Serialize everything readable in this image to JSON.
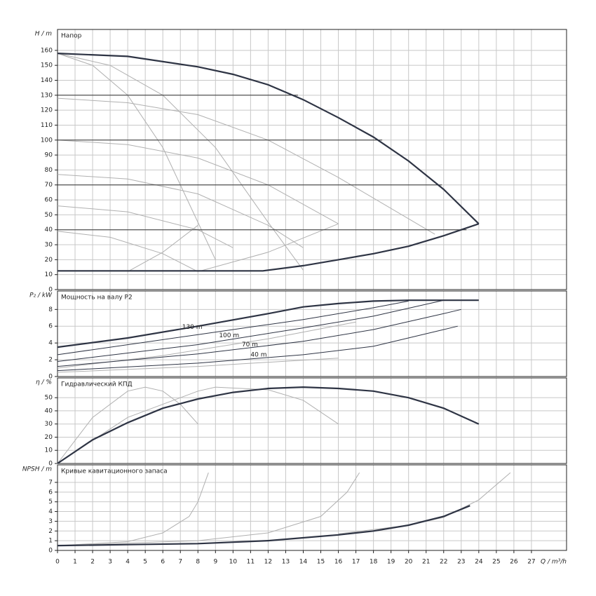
{
  "chart_data": [
    {
      "type": "line",
      "title": "Напор",
      "ylabel": "H / m",
      "xlim": [
        0,
        29
      ],
      "ylim": [
        0,
        174
      ],
      "yticks": [
        0,
        10,
        20,
        30,
        40,
        50,
        60,
        70,
        80,
        90,
        100,
        110,
        120,
        130,
        140,
        150,
        160
      ],
      "grid": true,
      "series": [
        {
          "color": "#b0b0b0",
          "weight": "normal",
          "x": [
            0,
            4,
            8,
            12,
            16,
            21.5
          ],
          "values": [
            128,
            125,
            117,
            100,
            75,
            37
          ]
        },
        {
          "color": "#b0b0b0",
          "weight": "normal",
          "x": [
            0,
            4,
            8,
            12,
            16
          ],
          "values": [
            100,
            97,
            88,
            70,
            44
          ]
        },
        {
          "color": "#b0b0b0",
          "weight": "normal",
          "x": [
            0,
            4,
            8,
            12,
            14
          ],
          "values": [
            77,
            74,
            64,
            43,
            28
          ]
        },
        {
          "color": "#b0b0b0",
          "weight": "normal",
          "x": [
            0,
            4,
            8,
            10
          ],
          "values": [
            56,
            52,
            40,
            28
          ]
        },
        {
          "color": "#b0b0b0",
          "weight": "normal",
          "x": [
            0,
            3,
            6,
            8
          ],
          "values": [
            39,
            35,
            24,
            12
          ]
        },
        {
          "color": "#b0b0b0",
          "weight": "normal",
          "x": [
            0,
            2,
            4,
            6,
            8,
            9
          ],
          "values": [
            158,
            150,
            130,
            95,
            45,
            20
          ]
        },
        {
          "color": "#b0b0b0",
          "weight": "normal",
          "x": [
            0,
            3,
            6,
            9,
            12,
            14
          ],
          "values": [
            158,
            150,
            130,
            95,
            45,
            13
          ]
        },
        {
          "color": "#b0b0b0",
          "weight": "normal",
          "x": [
            4,
            6,
            8
          ],
          "values": [
            12,
            25,
            43
          ]
        },
        {
          "color": "#b0b0b0",
          "weight": "normal",
          "x": [
            8,
            12,
            16
          ],
          "values": [
            12,
            25,
            44
          ]
        },
        {
          "color": "#333333",
          "weight": "normal",
          "x": [
            0,
            13.7
          ],
          "values": [
            130,
            130
          ]
        },
        {
          "color": "#333333",
          "weight": "normal",
          "x": [
            0,
            18.5
          ],
          "values": [
            100,
            100
          ]
        },
        {
          "color": "#333333",
          "weight": "normal",
          "x": [
            0,
            21.9
          ],
          "values": [
            70,
            70
          ]
        },
        {
          "color": "#333333",
          "weight": "normal",
          "x": [
            0,
            23.3
          ],
          "values": [
            40,
            40
          ]
        },
        {
          "color": "#2e3444",
          "weight": "bold",
          "x": [
            0,
            4,
            8,
            10,
            12,
            14,
            16,
            18,
            20,
            22,
            24
          ],
          "values": [
            158,
            156,
            149,
            144,
            137,
            127,
            115,
            102,
            86,
            67,
            44
          ]
        },
        {
          "color": "#2e3444",
          "weight": "bold",
          "x": [
            0,
            11.7,
            14,
            16,
            18,
            20,
            22,
            24
          ],
          "values": [
            12.5,
            12.5,
            16,
            20,
            24,
            29,
            36,
            44
          ]
        }
      ]
    },
    {
      "type": "line",
      "title": "Мощность на валу P2",
      "ylabel": "P₂ / kW",
      "xlim": [
        0,
        29
      ],
      "ylim": [
        0,
        10.2
      ],
      "yticks": [
        0,
        2,
        4,
        6,
        8
      ],
      "grid": true,
      "annotations": [
        "130 m",
        "100 m",
        "70 m",
        "40 m"
      ],
      "series": [
        {
          "color": "#b0b0b0",
          "weight": "normal",
          "x": [
            0,
            8,
            16
          ],
          "values": [
            0.5,
            1.2,
            2.2
          ]
        },
        {
          "color": "#b0b0b0",
          "weight": "normal",
          "x": [
            0,
            6,
            12,
            17
          ],
          "values": [
            1,
            2.5,
            4.5,
            6.5
          ]
        },
        {
          "color": "#2e3444",
          "weight": "normal",
          "x": [
            0,
            8,
            14,
            18,
            20
          ],
          "values": [
            2.6,
            5,
            6.8,
            8.2,
            9.0
          ]
        },
        {
          "color": "#2e3444",
          "weight": "normal",
          "x": [
            0,
            8,
            14,
            18,
            22
          ],
          "values": [
            1.8,
            3.8,
            5.8,
            7.2,
            9.1
          ]
        },
        {
          "color": "#2e3444",
          "weight": "normal",
          "x": [
            0,
            8,
            14,
            18,
            22,
            23
          ],
          "values": [
            1.2,
            2.7,
            4.2,
            5.6,
            7.5,
            8
          ]
        },
        {
          "color": "#2e3444",
          "weight": "normal",
          "x": [
            0,
            8,
            14,
            18,
            22,
            22.8
          ],
          "values": [
            0.7,
            1.6,
            2.6,
            3.6,
            5.6,
            6.0
          ]
        },
        {
          "color": "#2e3444",
          "weight": "bold",
          "x": [
            0,
            4,
            8,
            12,
            14,
            16,
            18,
            20,
            24
          ],
          "values": [
            3.5,
            4.6,
            6.0,
            7.5,
            8.3,
            8.7,
            9.0,
            9.1,
            9.1
          ]
        }
      ]
    },
    {
      "type": "line",
      "title": "Гидравлический КПД",
      "ylabel": "η / %",
      "xlim": [
        0,
        29
      ],
      "ylim": [
        0,
        65
      ],
      "yticks": [
        0,
        10,
        20,
        30,
        40,
        50
      ],
      "grid": true,
      "series": [
        {
          "color": "#b0b0b0",
          "weight": "normal",
          "x": [
            0,
            2,
            4,
            5,
            6,
            7,
            8
          ],
          "values": [
            0,
            35,
            55,
            58,
            55,
            45,
            30
          ]
        },
        {
          "color": "#b0b0b0",
          "weight": "normal",
          "x": [
            0,
            4,
            8,
            9,
            12,
            14,
            16
          ],
          "values": [
            0,
            35,
            55,
            58,
            56,
            48,
            30
          ]
        },
        {
          "color": "#2e3444",
          "weight": "bold",
          "x": [
            0,
            2,
            4,
            6,
            8,
            10,
            12,
            14,
            16,
            18,
            20,
            22,
            24
          ],
          "values": [
            0,
            18,
            31,
            42,
            49,
            54,
            57,
            58,
            57,
            55,
            50,
            42,
            30
          ]
        }
      ]
    },
    {
      "type": "line",
      "title": "Кривые кавитационного запаса",
      "ylabel": "NPSH / m",
      "xlabel": "Q / m³/h",
      "xlim": [
        0,
        29
      ],
      "ylim": [
        0,
        8.8
      ],
      "yticks": [
        0,
        1,
        2,
        3,
        4,
        5,
        6,
        7
      ],
      "xticks": [
        0,
        1,
        2,
        3,
        4,
        5,
        6,
        7,
        8,
        9,
        10,
        11,
        12,
        13,
        14,
        15,
        16,
        17,
        18,
        19,
        20,
        21,
        22,
        23,
        24,
        25,
        26,
        27
      ],
      "grid": true,
      "series": [
        {
          "color": "#b0b0b0",
          "weight": "normal",
          "x": [
            0,
            4,
            6,
            7.5,
            8,
            8.6
          ],
          "values": [
            0.5,
            0.9,
            1.8,
            3.5,
            5,
            8
          ]
        },
        {
          "color": "#b0b0b0",
          "weight": "normal",
          "x": [
            0,
            8,
            12,
            15,
            16.5,
            17.2
          ],
          "values": [
            0.5,
            1.0,
            1.8,
            3.5,
            6,
            8
          ]
        },
        {
          "color": "#b0b0b0",
          "weight": "normal",
          "x": [
            16,
            20,
            22,
            24,
            25.8
          ],
          "values": [
            1.7,
            2.6,
            3.4,
            5.2,
            8
          ]
        },
        {
          "color": "#2e3444",
          "weight": "bold",
          "x": [
            0,
            4,
            8,
            12,
            16,
            18,
            20,
            22,
            23.5
          ],
          "values": [
            0.5,
            0.6,
            0.7,
            1.0,
            1.6,
            2.0,
            2.6,
            3.5,
            4.6
          ]
        }
      ]
    }
  ]
}
